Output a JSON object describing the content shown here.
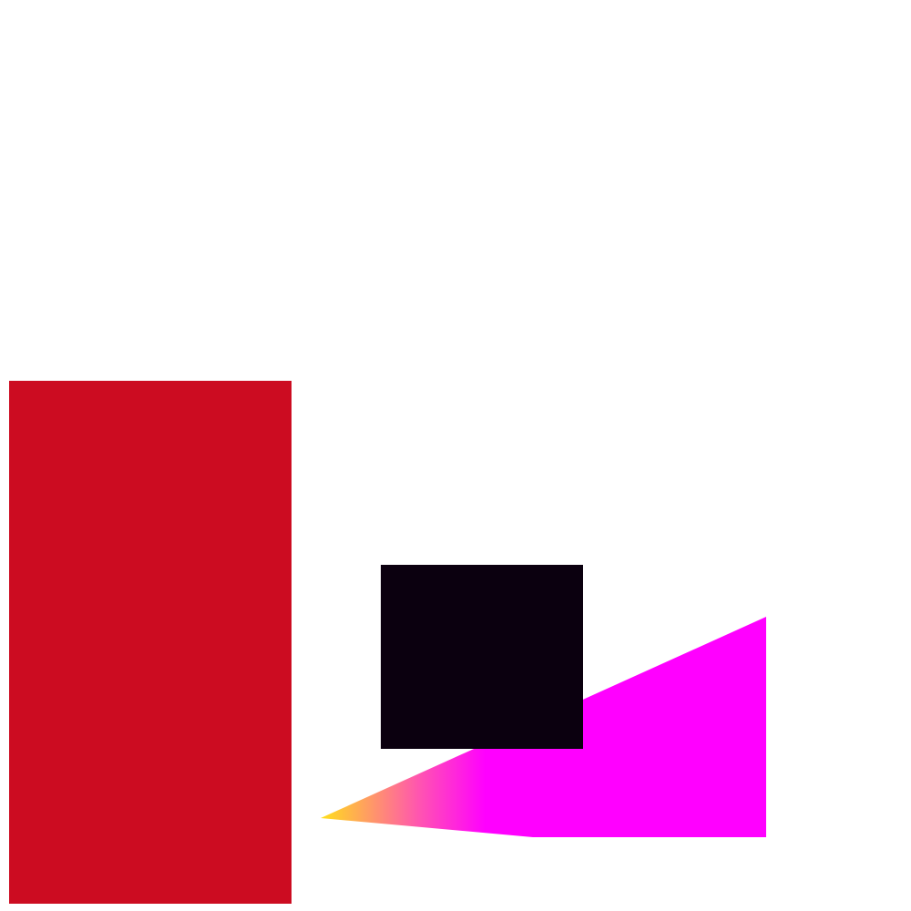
{
  "background": "#ffffff",
  "shapes": {
    "red_rectangle": {
      "fill": "#cc0c21"
    },
    "dark_square": {
      "fill": "#0b000f"
    },
    "gradient_wedge": {
      "gradient_start": "#ffe01a",
      "gradient_mid": "#ff55b0",
      "gradient_end": "#ff00ff"
    }
  }
}
